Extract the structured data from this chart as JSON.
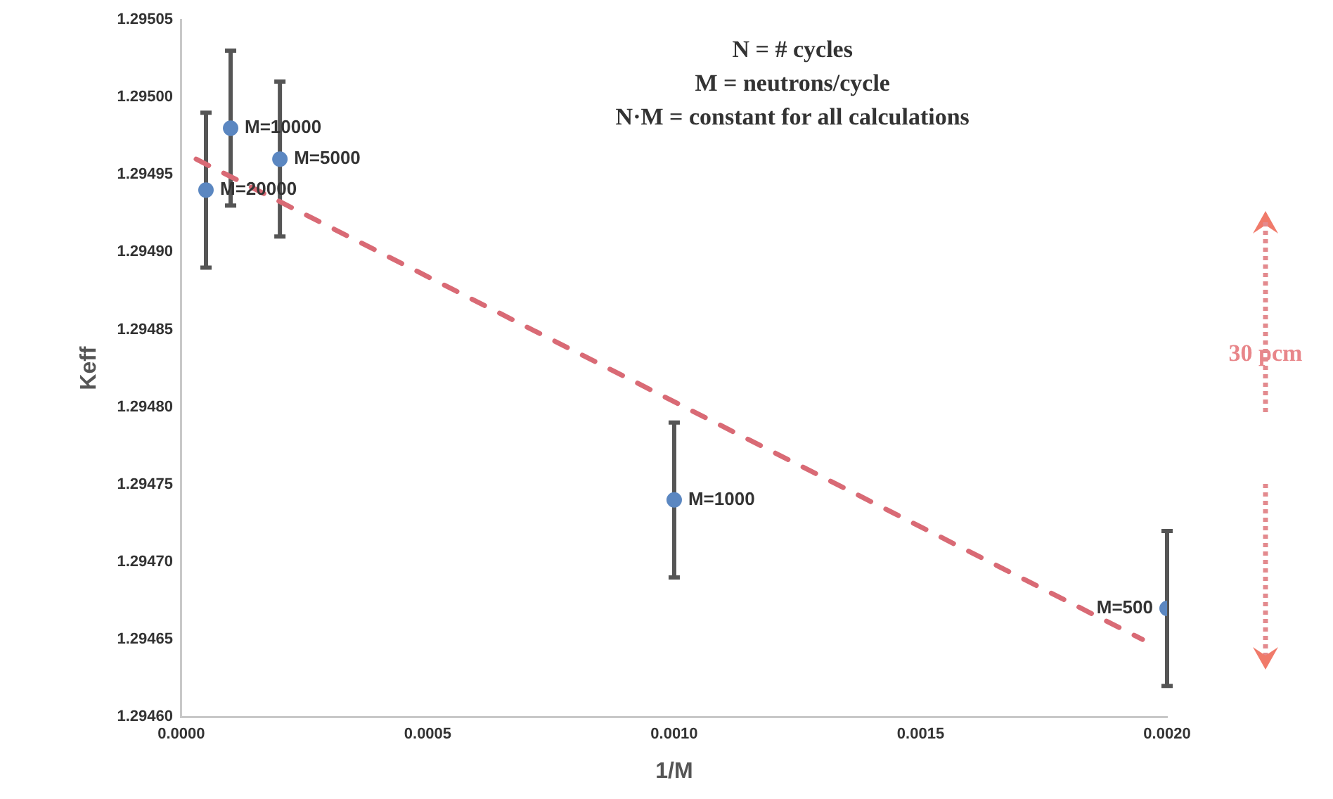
{
  "chart_data": {
    "type": "scatter",
    "xlabel": "1/M",
    "ylabel": "Keff",
    "x": [
      5e-05,
      0.0001,
      0.0002,
      0.001,
      0.002
    ],
    "series": [
      {
        "color": "#5b87c1",
        "values": [
          1.29494,
          1.29498,
          1.29496,
          1.29474,
          1.29467
        ],
        "errors": [
          5e-05,
          5e-05,
          5e-05,
          5e-05,
          5e-05
        ]
      },
      {
        "type": "line",
        "x": [
          3e-05,
          0.00195
        ],
        "color": "#d96a75",
        "values": [
          1.29496,
          1.29465
        ],
        "line_style": "dashed",
        "marker": "none"
      }
    ],
    "xlim": [
      0,
      0.002
    ],
    "ylim": [
      1.2946,
      1.29505
    ],
    "xticks": [
      {
        "value": 0,
        "label": "0.0000"
      },
      {
        "value": 0.0005,
        "label": "0.0005"
      },
      {
        "value": 0.001,
        "label": "0.0010"
      },
      {
        "value": 0.0015,
        "label": "0.0015"
      },
      {
        "value": 0.002,
        "label": "0.0020"
      }
    ],
    "yticks": [
      {
        "value": 1.2946,
        "label": "1.29460"
      },
      {
        "value": 1.29465,
        "label": "1.29465"
      },
      {
        "value": 1.2947,
        "label": "1.29470"
      },
      {
        "value": 1.29475,
        "label": "1.29475"
      },
      {
        "value": 1.2948,
        "label": "1.29480"
      },
      {
        "value": 1.29485,
        "label": "1.29485"
      },
      {
        "value": 1.2949,
        "label": "1.29490"
      },
      {
        "value": 1.29495,
        "label": "1.29495"
      },
      {
        "value": 1.295,
        "label": "1.29500"
      },
      {
        "value": 1.29505,
        "label": "1.29505"
      }
    ],
    "grid": false,
    "legend": false,
    "marker": "circle",
    "annotations": [
      "N = # cycles",
      "M = neutrons/cycle",
      "N·M = constant for all calculations",
      {
        "text": "M=20000",
        "x": 5e-05,
        "y": 1.29494
      },
      {
        "text": "M=10000",
        "x": 0.0001,
        "y": 1.29498
      },
      {
        "text": "M=5000",
        "x": 0.0002,
        "y": 1.29496
      },
      {
        "text": "M=1000",
        "x": 0.001,
        "y": 1.29474
      },
      {
        "text": "M=500",
        "x": 0.002,
        "y": 1.29467
      },
      "30 pcm"
    ]
  }
}
